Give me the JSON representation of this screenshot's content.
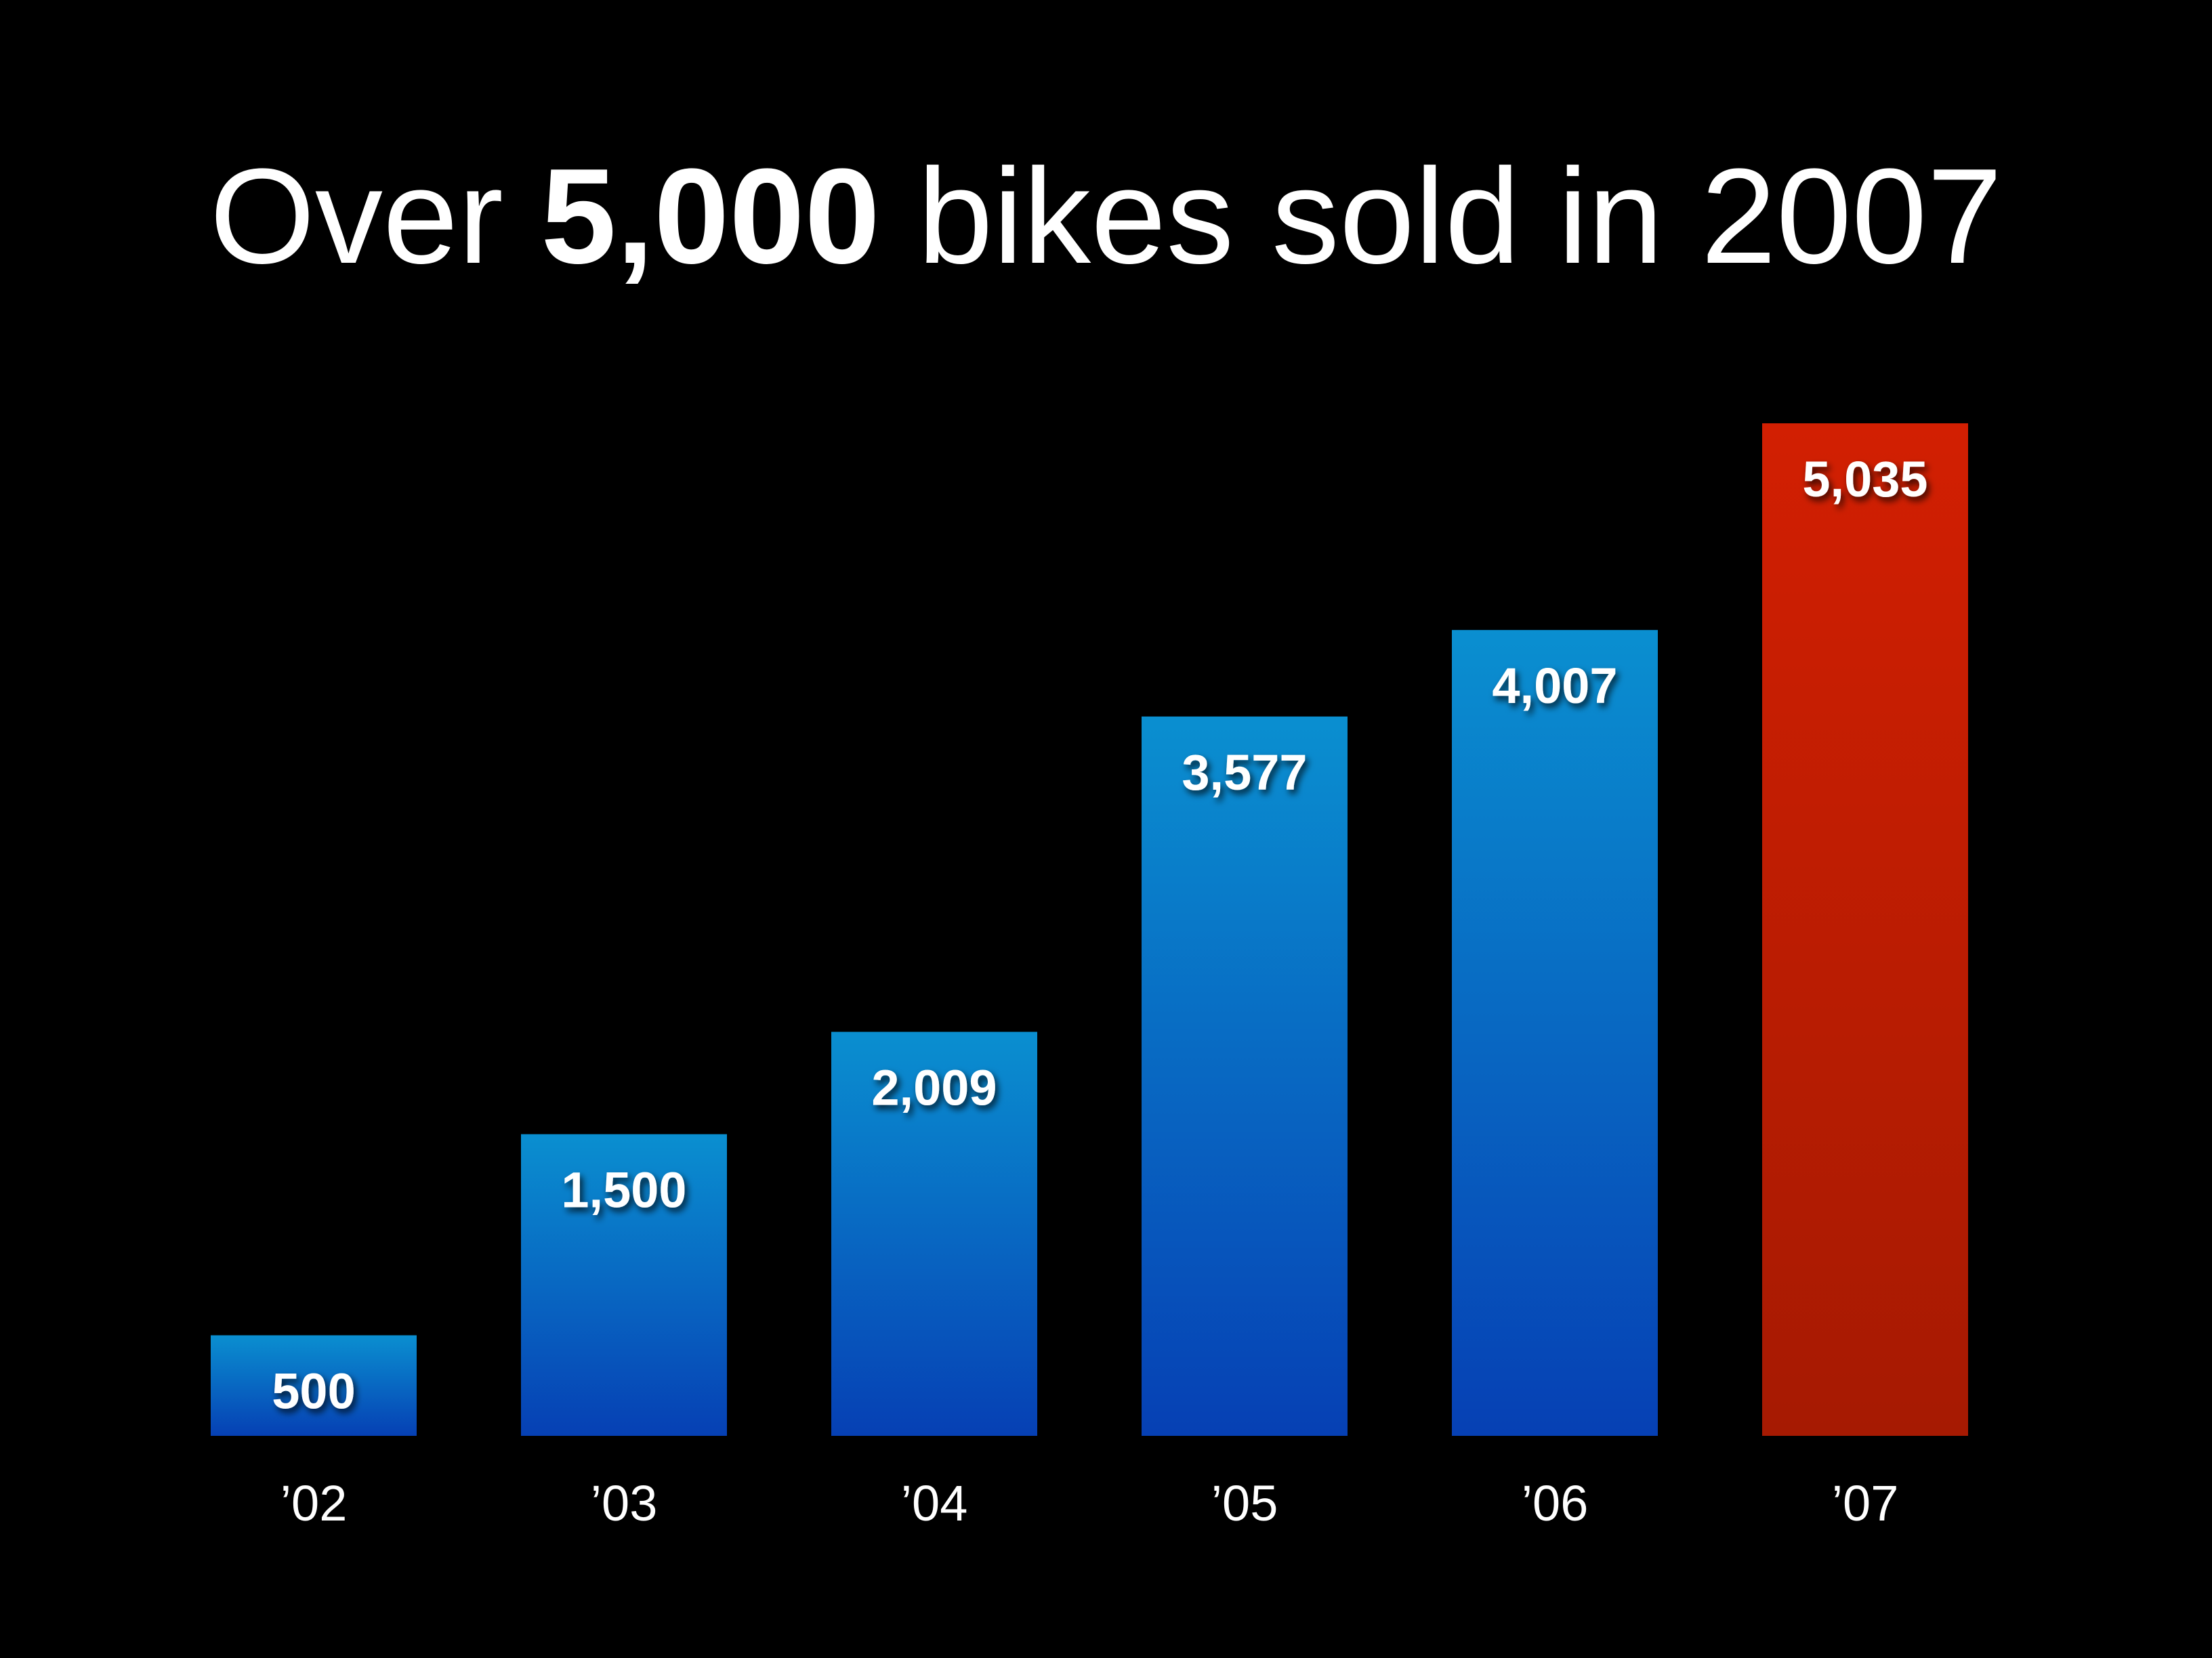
{
  "title": {
    "prefix": "Over ",
    "emphasis": "5,000",
    "suffix": " bikes sold in 2007"
  },
  "chart_data": {
    "type": "bar",
    "title": "Over 5,000 bikes sold in 2007",
    "categories": [
      "’02",
      "’03",
      "’04",
      "’05",
      "’06",
      "’07"
    ],
    "values": [
      500,
      1500,
      2009,
      3577,
      4007,
      5035
    ],
    "value_labels": [
      "500",
      "1,500",
      "2,009",
      "3,577",
      "4,007",
      "5,035"
    ],
    "xlabel": "",
    "ylabel": "",
    "ylim": [
      0,
      5035
    ],
    "grid": false,
    "legend": "none",
    "highlight_index": 5,
    "colors": {
      "bar_top": "#0a8fd0",
      "bar_bottom": "#0640b4",
      "highlight_top": "#d21f02",
      "highlight_bottom": "#a61a02",
      "text": "#ffffff",
      "background": "#000000"
    }
  }
}
